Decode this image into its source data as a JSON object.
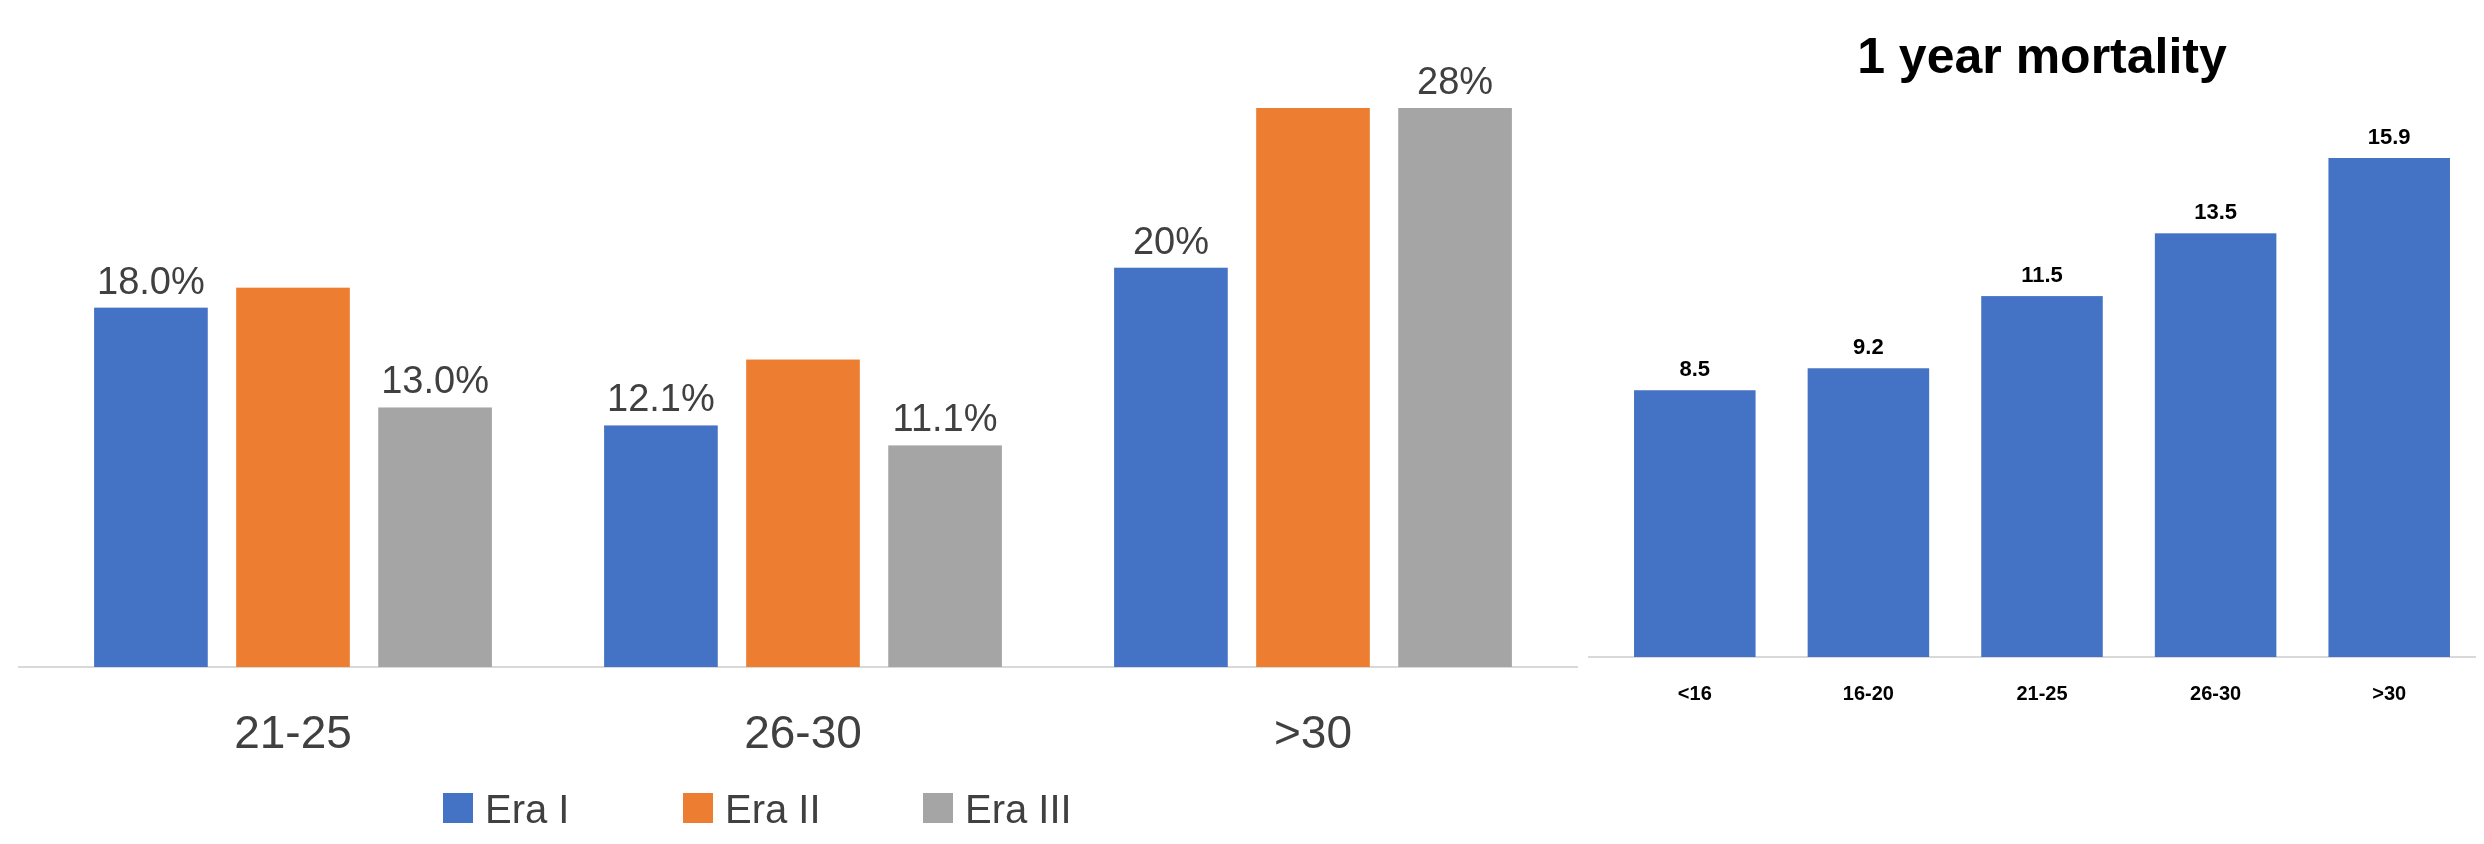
{
  "chart_data": [
    {
      "type": "bar",
      "categories": [
        "21-25",
        "26-30",
        ">30"
      ],
      "legend": "bottom",
      "series": [
        {
          "name": "Era I",
          "color": "#4472c4",
          "values": [
            18.0,
            12.1,
            20
          ],
          "value_labels": [
            "18.0%",
            "12.1%",
            "20%"
          ]
        },
        {
          "name": "Era II",
          "color": "#ed7d31",
          "values": [
            19.0,
            15.4,
            28
          ],
          "value_labels": [
            null,
            null,
            null
          ]
        },
        {
          "name": "Era III",
          "color": "#a5a5a5",
          "values": [
            13.0,
            11.1,
            28
          ],
          "value_labels": [
            "13.0%",
            "11.1%",
            "28%"
          ]
        }
      ]
    },
    {
      "type": "bar",
      "title": "1 year mortality",
      "categories": [
        "<16",
        "16-20",
        "21-25",
        "26-30",
        ">30"
      ],
      "data_labels": true,
      "series": [
        {
          "color": "#4472c4",
          "values": [
            8.5,
            9.2,
            11.5,
            13.5,
            15.9
          ]
        }
      ]
    }
  ]
}
